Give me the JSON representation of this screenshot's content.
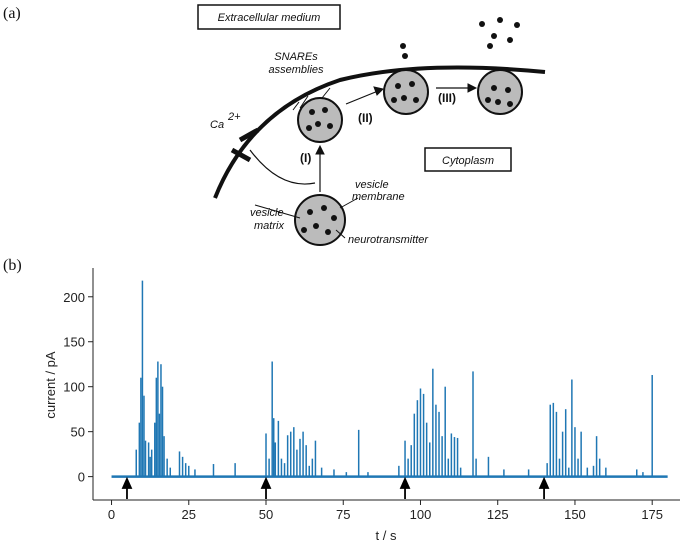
{
  "panel_labels": [
    "(a)",
    "(b)"
  ],
  "diagram": {
    "extracellular": "Extracellular medium",
    "snares": [
      "SNAREs",
      "assemblies"
    ],
    "ca": "Ca",
    "ca_charge": "2+",
    "steps": [
      "(I)",
      "(II)",
      "(III)"
    ],
    "cytoplasm": "Cytoplasm",
    "vesicle_membrane": [
      "vesicle",
      "membrane"
    ],
    "vesicle_matrix": [
      "vesicle",
      "matrix"
    ],
    "neurotransmitter": "neurotransmitter"
  },
  "chart_data": {
    "type": "spike",
    "xlabel": "t  /  s",
    "ylabel": "current  /  pA",
    "color": "#1f77b4",
    "xlim": [
      -6,
      184
    ],
    "ylim": [
      -26,
      232
    ],
    "xticks": [
      0,
      25,
      50,
      75,
      100,
      125,
      150,
      175
    ],
    "yticks": [
      0,
      50,
      100,
      150,
      200
    ],
    "baseline_x": [
      0,
      180
    ],
    "stimulus_x": [
      5,
      50,
      95,
      140
    ],
    "x": [
      8,
      9,
      9.5,
      10,
      10.5,
      11,
      12,
      12.5,
      13,
      14,
      14.5,
      15,
      15.5,
      16,
      16.5,
      17,
      18,
      19,
      22,
      23,
      24,
      25,
      27,
      33,
      40,
      50,
      51,
      52,
      52.5,
      53,
      54,
      55,
      56,
      57,
      58,
      59,
      60,
      61,
      62,
      63,
      64,
      65,
      66,
      68,
      72,
      76,
      80,
      83,
      93,
      95,
      96,
      97,
      98,
      99,
      100,
      101,
      102,
      103,
      104,
      105,
      106,
      107,
      108,
      109,
      110,
      111,
      112,
      113,
      117,
      118,
      122,
      127,
      135,
      141,
      142,
      143,
      144,
      145,
      146,
      147,
      148,
      149,
      150,
      151,
      152,
      154,
      156,
      157,
      158,
      160,
      170,
      172,
      175
    ],
    "values": [
      30,
      60,
      110,
      218,
      90,
      40,
      38,
      22,
      30,
      60,
      110,
      128,
      70,
      125,
      100,
      45,
      20,
      10,
      28,
      22,
      15,
      12,
      8,
      14,
      15,
      48,
      20,
      128,
      65,
      38,
      62,
      20,
      15,
      46,
      50,
      55,
      30,
      42,
      50,
      35,
      12,
      20,
      40,
      10,
      8,
      5,
      52,
      5,
      12,
      40,
      20,
      35,
      70,
      85,
      98,
      92,
      60,
      38,
      120,
      80,
      72,
      45,
      100,
      20,
      48,
      44,
      43,
      10,
      117,
      20,
      22,
      8,
      8,
      15,
      80,
      82,
      72,
      20,
      50,
      75,
      10,
      108,
      55,
      20,
      50,
      10,
      12,
      45,
      20,
      10,
      8,
      5,
      113
    ]
  }
}
